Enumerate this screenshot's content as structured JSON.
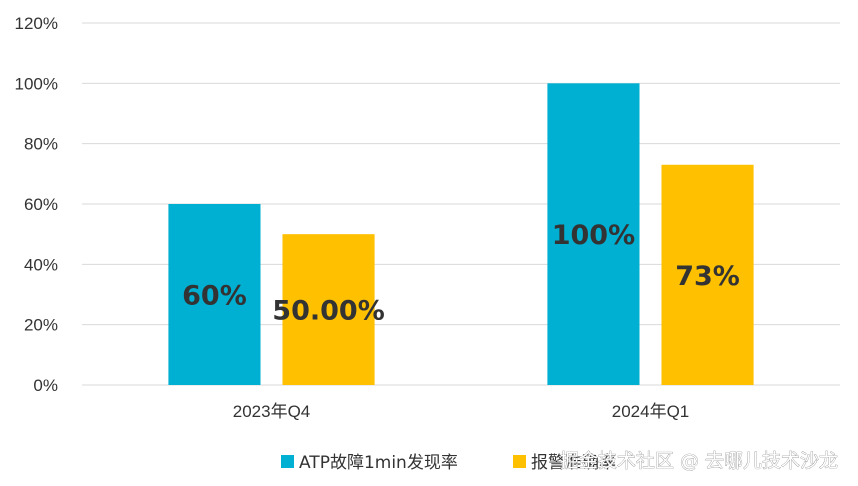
{
  "chart_data": {
    "type": "bar",
    "categories": [
      "2023年Q4",
      "2024年Q1"
    ],
    "series": [
      {
        "name": "ATP故障1min发现率",
        "values": [
          60,
          100
        ],
        "labels": [
          "60%",
          "100%"
        ]
      },
      {
        "name": "报警准确率",
        "values": [
          50,
          73
        ],
        "labels": [
          "50.00%",
          "73%"
        ]
      }
    ],
    "yticks": [
      "0%",
      "20%",
      "40%",
      "60%",
      "80%",
      "100%",
      "120%"
    ],
    "ylim": [
      0,
      120
    ],
    "grid": true,
    "legend_position": "bottom",
    "title": "",
    "xlabel": "",
    "ylabel": ""
  },
  "colors": {
    "series": [
      "#00B0D2",
      "#FFC000"
    ],
    "grid": "#D9D9D9",
    "text": "#333333"
  },
  "watermark": "掘金技术社区 @ 去哪儿技术沙龙"
}
